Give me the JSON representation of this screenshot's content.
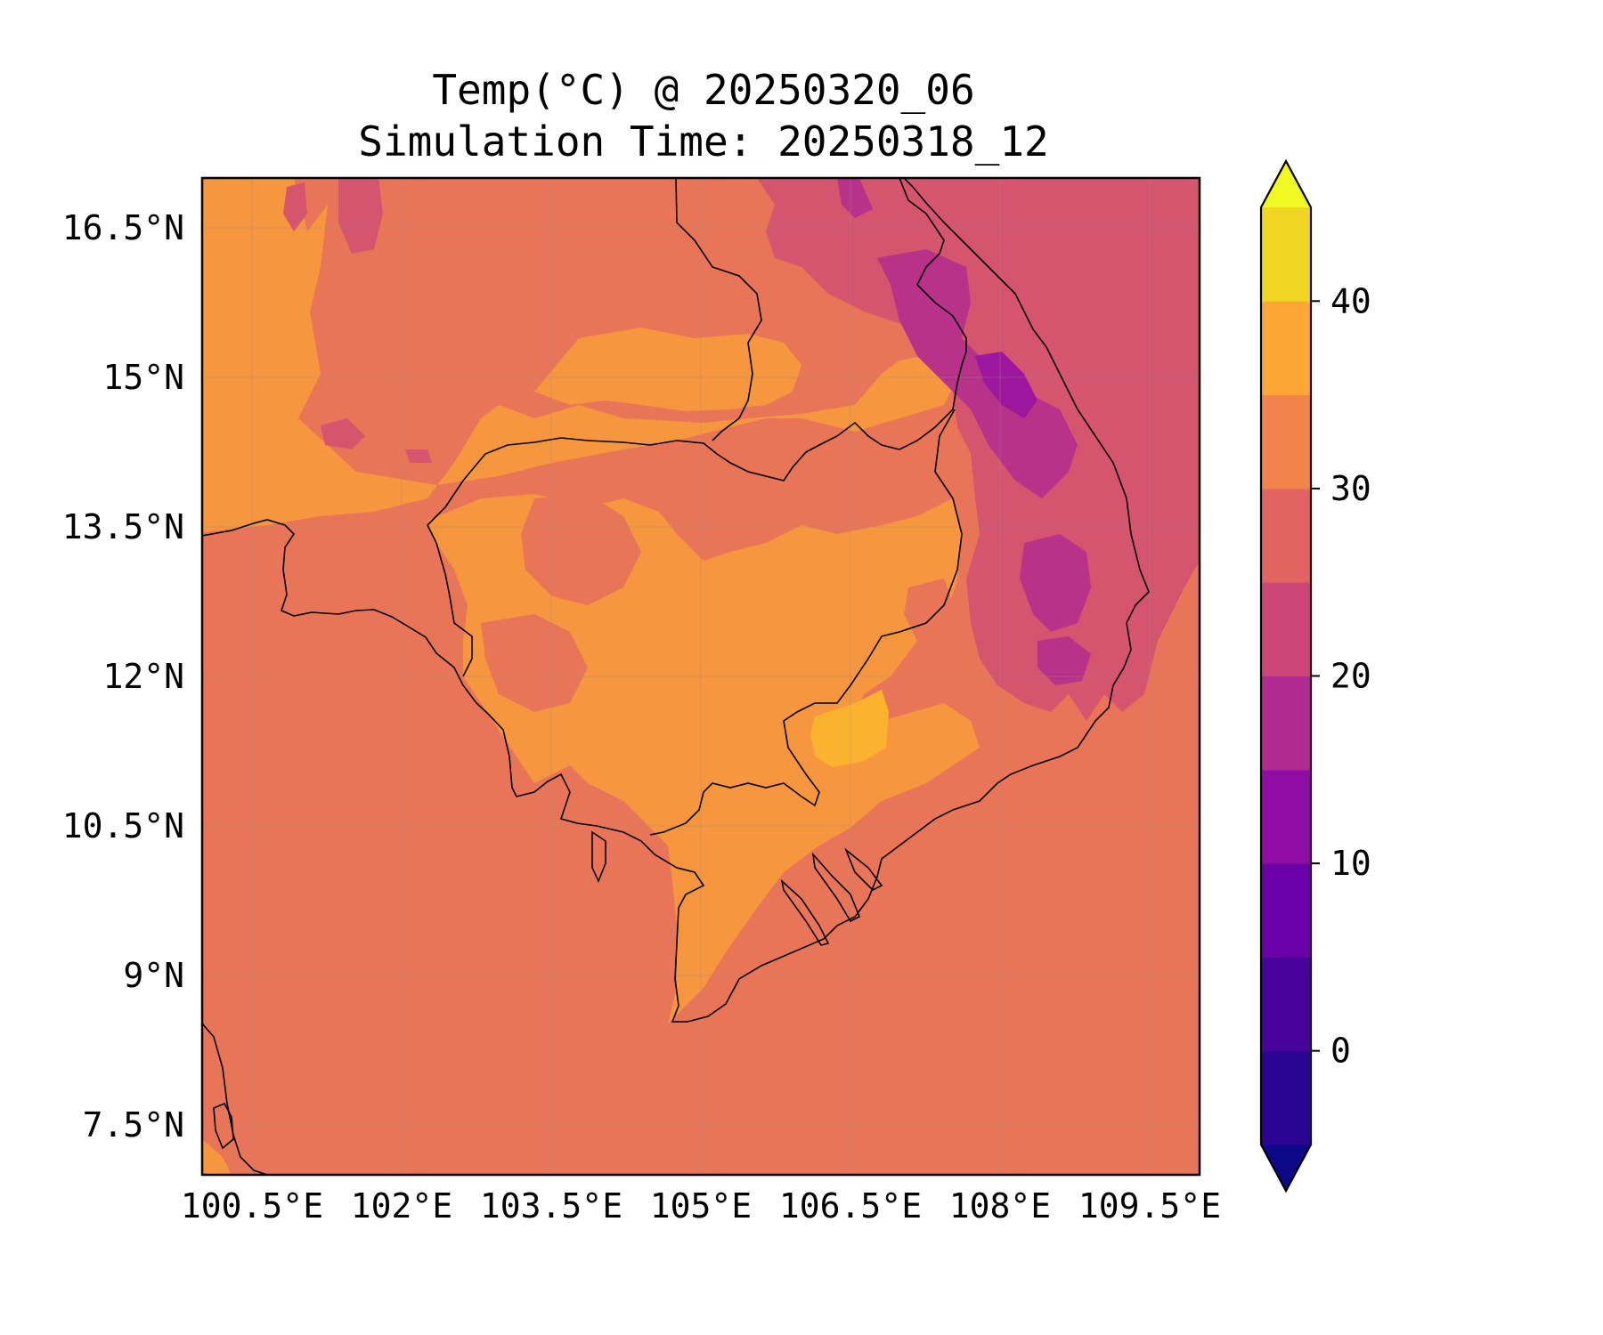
{
  "title": "Temp(°C) @ 20250320_06",
  "subtitle": "Simulation Time: 20250318_12",
  "map": {
    "lon_range": [
      100.0,
      110.0
    ],
    "lat_range": [
      7.0,
      17.0
    ],
    "grid": true,
    "x_ticks": [
      {
        "value": 100.5,
        "label": "100.5°E"
      },
      {
        "value": 102.0,
        "label": "102°E"
      },
      {
        "value": 103.5,
        "label": "103.5°E"
      },
      {
        "value": 105.0,
        "label": "105°E"
      },
      {
        "value": 106.5,
        "label": "106.5°E"
      },
      {
        "value": 108.0,
        "label": "108°E"
      },
      {
        "value": 109.5,
        "label": "109.5°E"
      }
    ],
    "y_ticks": [
      {
        "value": 16.5,
        "label": "16.5°N"
      },
      {
        "value": 15.0,
        "label": "15°N"
      },
      {
        "value": 13.5,
        "label": "13.5°N"
      },
      {
        "value": 12.0,
        "label": "12°N"
      },
      {
        "value": 10.5,
        "label": "10.5°N"
      },
      {
        "value": 9.0,
        "label": "9°N"
      },
      {
        "value": 7.5,
        "label": "7.5°N"
      }
    ],
    "background_band": "25-30",
    "colors": {
      "band_25_30": "#e97558",
      "band_30_35": "#f6963f",
      "band_35_40": "#fbb32f",
      "band_20_25": "#d5546e",
      "band_15_20": "#b83289",
      "band_10_15": "#9c179e"
    }
  },
  "colorbar": {
    "label": "",
    "extend": "both",
    "range": [
      -5,
      45
    ],
    "tick_labels": [
      {
        "value": 0,
        "label": "0"
      },
      {
        "value": 10,
        "label": "10"
      },
      {
        "value": 20,
        "label": "20"
      },
      {
        "value": 30,
        "label": "30"
      },
      {
        "value": 40,
        "label": "40"
      }
    ],
    "bins": [
      {
        "from": -10,
        "to": -5,
        "color": "#0d0887",
        "kind": "under"
      },
      {
        "from": -5,
        "to": 0,
        "color": "#2a0593"
      },
      {
        "from": 0,
        "to": 5,
        "color": "#49039d"
      },
      {
        "from": 5,
        "to": 10,
        "color": "#6a00a8"
      },
      {
        "from": 10,
        "to": 15,
        "color": "#8f0da4"
      },
      {
        "from": 15,
        "to": 20,
        "color": "#b12a90"
      },
      {
        "from": 20,
        "to": 25,
        "color": "#cc4778"
      },
      {
        "from": 25,
        "to": 30,
        "color": "#e16462"
      },
      {
        "from": 30,
        "to": 35,
        "color": "#f2844b"
      },
      {
        "from": 35,
        "to": 40,
        "color": "#fca636"
      },
      {
        "from": 40,
        "to": 45,
        "color": "#f0d623"
      },
      {
        "from": 45,
        "to": 50,
        "color": "#f0f921",
        "kind": "over"
      }
    ]
  }
}
